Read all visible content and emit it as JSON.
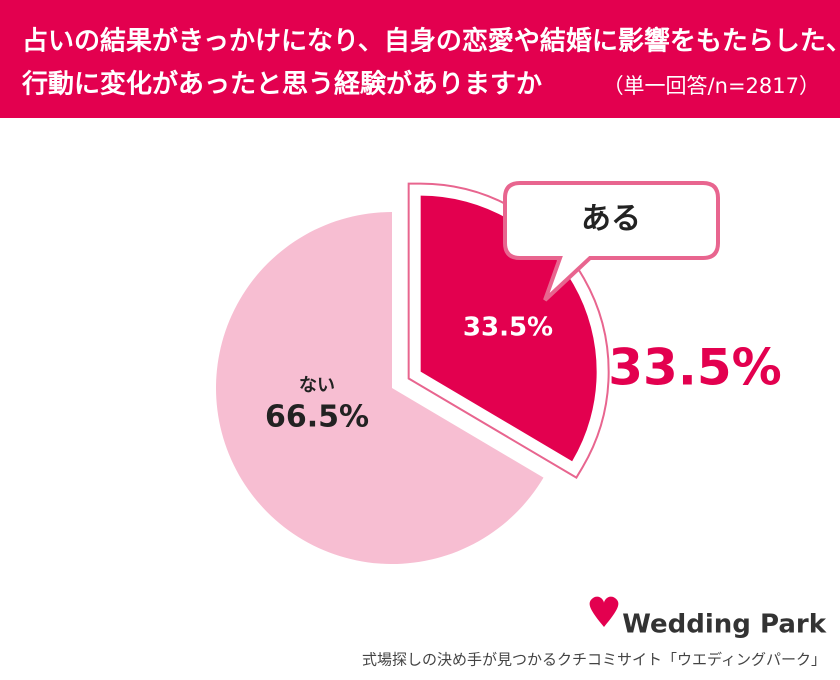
{
  "chart_data": {
    "type": "pie",
    "title": [
      "占いの結果がきっかけになり、自身の恋愛や結婚に影響をもたらした、",
      "行動に変化があったと思う経験がありますか"
    ],
    "subtitle": "（単一回答/n=2817）",
    "categories": [
      "ある",
      "ない"
    ],
    "values": [
      33.5,
      66.5
    ],
    "value_labels": [
      "33.5%",
      "66.5%"
    ],
    "colors": [
      "#e3004f",
      "#f7bed2"
    ]
  },
  "footer": {
    "logo": "Wedding Park",
    "tagline": "式場探しの決め手が見つかるクチコミサイト「ウエディングパーク」"
  }
}
